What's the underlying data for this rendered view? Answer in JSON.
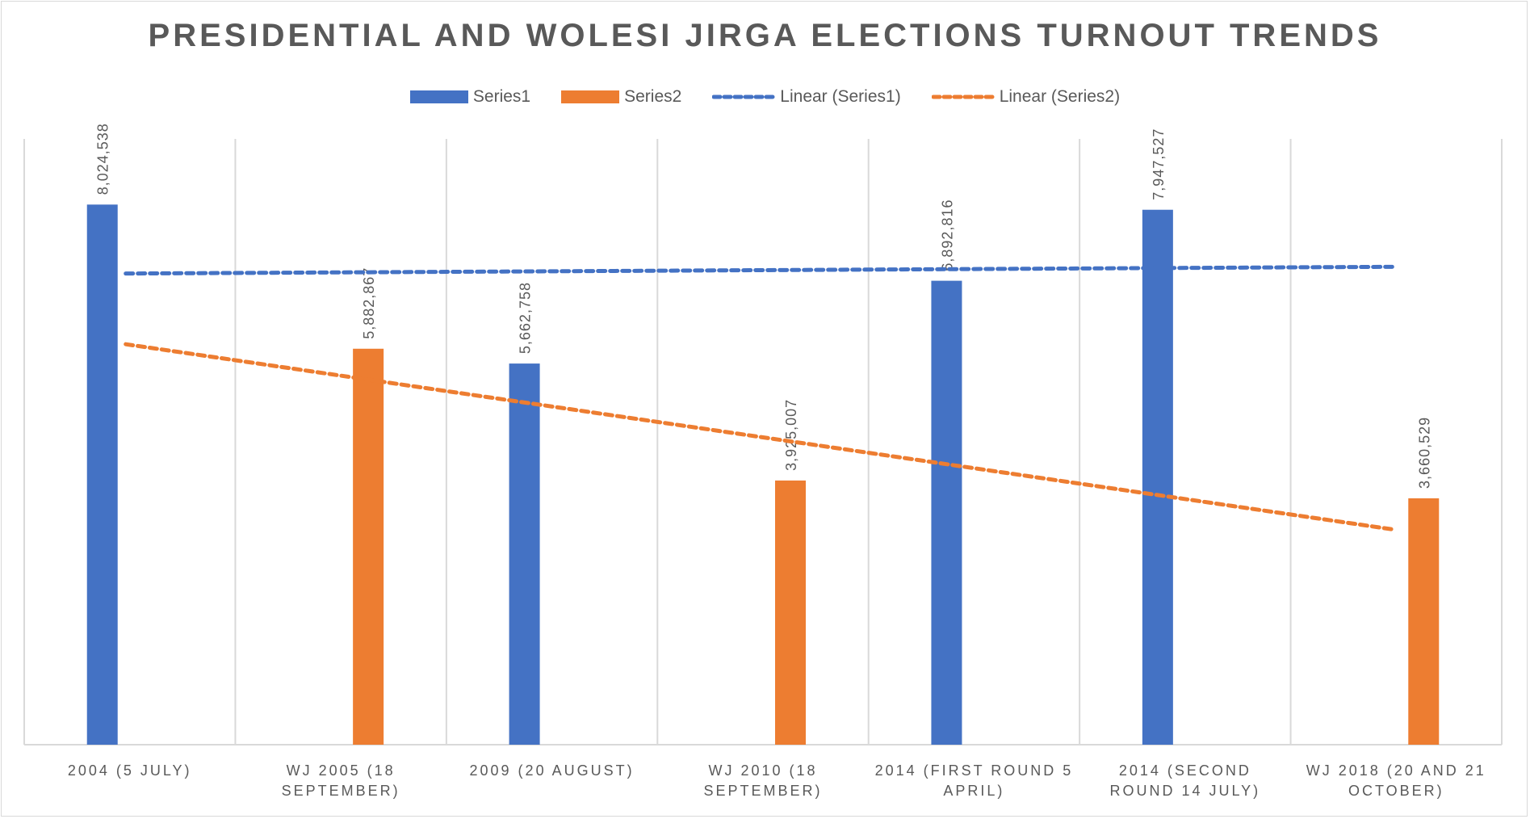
{
  "chart_data": {
    "type": "bar",
    "title": "PRESIDENTIAL AND WOLESI JIRGA ELECTIONS TURNOUT TRENDS",
    "categories": [
      "2004 (5 JULY)",
      "WJ 2005 (18\nSEPTEMBER)",
      "2009 (20 AUGUST)",
      "WJ 2010 (18\nSEPTEMBER)",
      "2014 (FIRST ROUND 5\nAPRIL)",
      "2014 (SECOND\nROUND 14 JULY)",
      "WJ 2018 (20 AND 21\nOCTOBER)"
    ],
    "series": [
      {
        "name": "Series1",
        "color": "#4472c4",
        "values": [
          8024538,
          null,
          5662758,
          null,
          6892816,
          7947527,
          null
        ],
        "labels": [
          "8,024,538",
          "",
          "5,662,758",
          "",
          "6,892,816",
          "7,947,527",
          ""
        ]
      },
      {
        "name": "Series2",
        "color": "#ed7d31",
        "values": [
          null,
          5882867,
          null,
          3925007,
          null,
          null,
          3660529
        ],
        "labels": [
          "",
          "5,882,867",
          "",
          "3,925,007",
          "",
          "",
          "3,660,529"
        ]
      }
    ],
    "trendlines": [
      {
        "name": "Linear (Series1)",
        "series": "Series1",
        "start": 7000000,
        "end": 7100000,
        "color": "#4472c4"
      },
      {
        "name": "Linear (Series2)",
        "series": "Series2",
        "start": 5950000,
        "end": 3200000,
        "color": "#ed7d31"
      }
    ],
    "ylim": [
      0,
      9000000
    ],
    "xlabel": "",
    "ylabel": "",
    "grid": "vertical",
    "legend_position": "top"
  }
}
